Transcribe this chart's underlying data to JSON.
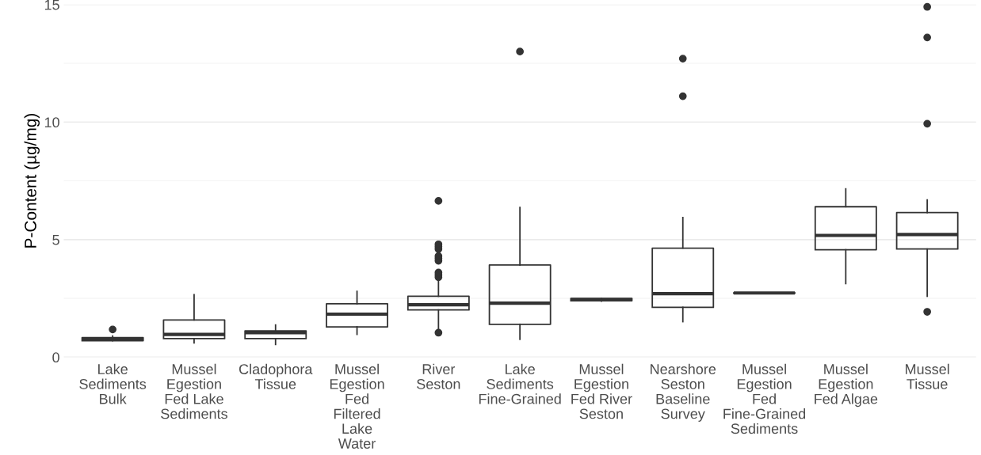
{
  "chart_data": {
    "type": "box",
    "ylabel": "P-Content (µg/mg)",
    "categories": [
      "Lake\nSediments\nBulk",
      "Mussel\nEgestion\nFed Lake\nSediments",
      "Cladophora\nTissue",
      "Mussel\nEgestion\nFed\nFiltered\nLake\nWater",
      "River\nSeston",
      "Lake\nSediments\nFine-Grained",
      "Mussel\nEgestion\nFed River\nSeston",
      "Nearshore\nSeston\nBaseline\nSurvey",
      "Mussel\nEgestion\nFed\nFine-Grained\nSediments",
      "Mussel\nEgestion\nFed Algae",
      "Mussel\nTissue"
    ],
    "boxes": [
      {
        "low": 0.7,
        "q1": 0.7,
        "median": 0.76,
        "q3": 0.83,
        "high": 0.9,
        "outliers": [
          1.18
        ]
      },
      {
        "low": 0.61,
        "q1": 0.79,
        "median": 0.97,
        "q3": 1.58,
        "high": 2.66
      },
      {
        "low": 0.54,
        "q1": 0.79,
        "median": 1.04,
        "q3": 1.12,
        "high": 1.37
      },
      {
        "low": 0.97,
        "q1": 1.29,
        "median": 1.83,
        "q3": 2.27,
        "high": 2.8
      },
      {
        "low": 1.22,
        "q1": 2.01,
        "median": 2.23,
        "q3": 2.59,
        "high": 3.3,
        "outliers": [
          1.04,
          3.4,
          3.5,
          3.6,
          4.1,
          4.2,
          4.3,
          4.6,
          4.7,
          4.8,
          6.65
        ]
      },
      {
        "low": 0.76,
        "q1": 1.4,
        "median": 2.3,
        "q3": 3.92,
        "high": 6.37,
        "outliers": [
          13.0
        ]
      },
      {
        "low": 2.38,
        "q1": 2.4,
        "median": 2.45,
        "q3": 2.5,
        "high": 2.5
      },
      {
        "low": 1.51,
        "q1": 2.12,
        "median": 2.7,
        "q3": 4.64,
        "high": 5.94,
        "outliers": [
          11.1,
          12.7
        ]
      },
      {
        "low": 2.72,
        "q1": 2.72,
        "median": 2.73,
        "q3": 2.74,
        "high": 2.74
      },
      {
        "low": 3.13,
        "q1": 4.57,
        "median": 5.18,
        "q3": 6.4,
        "high": 7.16
      },
      {
        "low": 2.59,
        "q1": 4.6,
        "median": 5.22,
        "q3": 6.15,
        "high": 6.69,
        "outliers": [
          1.93,
          9.93,
          13.6,
          14.9
        ]
      }
    ],
    "color": "#333333",
    "ylim": [
      0,
      15
    ],
    "yticks": [
      0,
      {
        "value": 2.5,
        "label": null
      },
      5,
      {
        "value": 7.5,
        "label": null
      },
      10,
      {
        "value": 12.5,
        "label": null
      },
      15
    ],
    "grid": "y"
  }
}
